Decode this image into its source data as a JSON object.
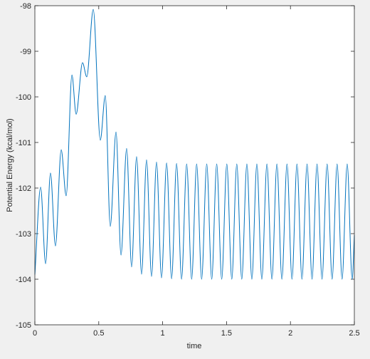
{
  "chart_data": {
    "type": "line",
    "xlabel": "time",
    "ylabel": "Potential Energy (kcal/mol)",
    "xlim": [
      0,
      2.5
    ],
    "ylim": [
      -105,
      -98
    ],
    "xticks": [
      0,
      0.5,
      1,
      1.5,
      2,
      2.5
    ],
    "yticks": [
      -105,
      -104,
      -103,
      -102,
      -101,
      -100,
      -99,
      -98
    ],
    "grid": false,
    "series": [
      {
        "color": "#0072bd",
        "x": [
          0,
          0.045,
          0.084,
          0.122,
          0.161,
          0.206,
          0.245,
          0.29,
          0.323,
          0.373,
          0.406,
          0.457,
          0.512,
          0.551,
          0.59,
          0.635,
          0.674,
          0.718,
          0.757,
          0.796,
          0.835,
          0.874,
          0.913,
          0.952,
          0.991,
          1.031,
          1.07,
          1.109,
          1.148,
          1.188,
          1.227,
          1.266,
          1.305,
          1.345,
          1.384,
          1.423,
          1.462,
          1.502,
          1.541,
          1.58,
          1.619,
          1.659,
          1.698,
          1.737,
          1.776,
          1.816,
          1.855,
          1.894,
          1.933,
          1.973,
          2.012,
          2.051,
          2.09,
          2.13,
          2.169,
          2.208,
          2.247,
          2.287,
          2.326,
          2.365,
          2.404,
          2.444,
          2.483,
          2.5
        ],
        "values": [
          -103.9,
          -101.98,
          -103.66,
          -101.67,
          -103.27,
          -101.16,
          -102.17,
          -99.52,
          -100.38,
          -99.25,
          -99.56,
          -98.08,
          -100.95,
          -99.97,
          -102.84,
          -100.77,
          -103.47,
          -101.13,
          -103.73,
          -101.31,
          -103.89,
          -101.38,
          -103.94,
          -101.43,
          -103.97,
          -101.45,
          -103.99,
          -101.46,
          -104,
          -101.47,
          -104,
          -101.47,
          -104,
          -101.47,
          -104,
          -101.47,
          -104,
          -101.47,
          -104,
          -101.47,
          -104,
          -101.47,
          -104,
          -101.47,
          -104,
          -101.47,
          -104,
          -101.47,
          -104,
          -101.47,
          -104,
          -101.47,
          -104,
          -101.47,
          -104,
          -101.47,
          -104,
          -101.47,
          -104,
          -101.47,
          -104,
          -101.47,
          -104,
          -103.03
        ]
      }
    ]
  }
}
